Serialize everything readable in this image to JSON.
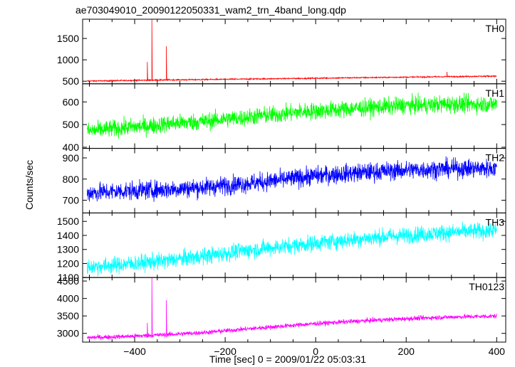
{
  "chart_data": {
    "type": "line",
    "title": "ae703049010_20090122050331_wam2_trn_4band_long.qdp",
    "xlabel": "Time [sec] 0 = 2009/01/22 05:03:31",
    "ylabel": "Counts/sec",
    "xlim": [
      -515,
      420
    ],
    "xticks": [
      -400,
      -200,
      0,
      200,
      400
    ],
    "grid": false,
    "panels": [
      {
        "label": "TH0",
        "color": "#ff0000",
        "ylim": [
          440,
          1950
        ],
        "yticks": [
          500,
          1000,
          1500
        ],
        "series_x": [
          -505,
          -460,
          -400,
          -360,
          -320,
          -280,
          -240,
          -200,
          -160,
          -120,
          -80,
          -40,
          0,
          40,
          80,
          120,
          160,
          200,
          240,
          280,
          320,
          360,
          400
        ],
        "series_y": [
          505,
          510,
          520,
          525,
          530,
          535,
          540,
          545,
          550,
          555,
          560,
          565,
          570,
          575,
          580,
          585,
          590,
          595,
          600,
          605,
          610,
          615,
          620
        ],
        "noise": 25,
        "spikes": [
          {
            "x": -372,
            "y": 950
          },
          {
            "x": -362,
            "y": 1950
          },
          {
            "x": -330,
            "y": 1320
          },
          {
            "x": 290,
            "y": 720
          }
        ]
      },
      {
        "label": "TH1",
        "color": "#00ff00",
        "ylim": [
          395,
          680
        ],
        "yticks": [
          400,
          500,
          600
        ],
        "series_x": [
          -505,
          -460,
          -400,
          -360,
          -320,
          -280,
          -240,
          -200,
          -160,
          -120,
          -80,
          -40,
          0,
          40,
          80,
          120,
          160,
          200,
          240,
          280,
          320,
          360,
          400
        ],
        "series_y": [
          470,
          480,
          490,
          495,
          505,
          510,
          515,
          525,
          530,
          540,
          545,
          555,
          560,
          565,
          570,
          575,
          580,
          585,
          585,
          590,
          590,
          590,
          590
        ],
        "noise": 65,
        "spikes": []
      },
      {
        "label": "TH2",
        "color": "#0000ff",
        "ylim": [
          640,
          945
        ],
        "yticks": [
          700,
          800,
          900
        ],
        "series_x": [
          -505,
          -460,
          -400,
          -360,
          -320,
          -280,
          -240,
          -200,
          -160,
          -120,
          -80,
          -40,
          0,
          40,
          80,
          120,
          160,
          200,
          240,
          280,
          320,
          360,
          400
        ],
        "series_y": [
          735,
          740,
          745,
          748,
          752,
          757,
          762,
          770,
          778,
          786,
          795,
          805,
          815,
          822,
          828,
          833,
          838,
          842,
          845,
          848,
          850,
          850,
          850
        ],
        "noise": 75,
        "spikes": []
      },
      {
        "label": "TH3",
        "color": "#00ffff",
        "ylim": [
          1100,
          1560
        ],
        "yticks": [
          1100,
          1200,
          1300,
          1400,
          1500
        ],
        "series_x": [
          -505,
          -460,
          -400,
          -360,
          -320,
          -280,
          -240,
          -200,
          -160,
          -120,
          -80,
          -40,
          0,
          40,
          80,
          120,
          160,
          200,
          240,
          280,
          320,
          360,
          400
        ],
        "series_y": [
          1175,
          1185,
          1200,
          1212,
          1225,
          1240,
          1255,
          1272,
          1290,
          1305,
          1318,
          1330,
          1345,
          1358,
          1370,
          1382,
          1392,
          1400,
          1410,
          1418,
          1425,
          1430,
          1435
        ],
        "noise": 100,
        "spikes": []
      },
      {
        "label": "TH0123",
        "color": "#ff00ff",
        "ylim": [
          2750,
          4600
        ],
        "yticks": [
          3000,
          3500,
          4000,
          4500
        ],
        "series_x": [
          -505,
          -460,
          -400,
          -360,
          -320,
          -280,
          -240,
          -200,
          -160,
          -120,
          -80,
          -40,
          0,
          40,
          80,
          120,
          160,
          200,
          240,
          280,
          320,
          360,
          400
        ],
        "series_y": [
          2880,
          2895,
          2920,
          2945,
          2970,
          3000,
          3030,
          3075,
          3120,
          3160,
          3200,
          3240,
          3280,
          3310,
          3340,
          3370,
          3395,
          3420,
          3440,
          3460,
          3475,
          3485,
          3495
        ],
        "noise": 110,
        "spikes": [
          {
            "x": -372,
            "y": 3300
          },
          {
            "x": -362,
            "y": 4600
          },
          {
            "x": -330,
            "y": 3950
          }
        ]
      }
    ]
  }
}
